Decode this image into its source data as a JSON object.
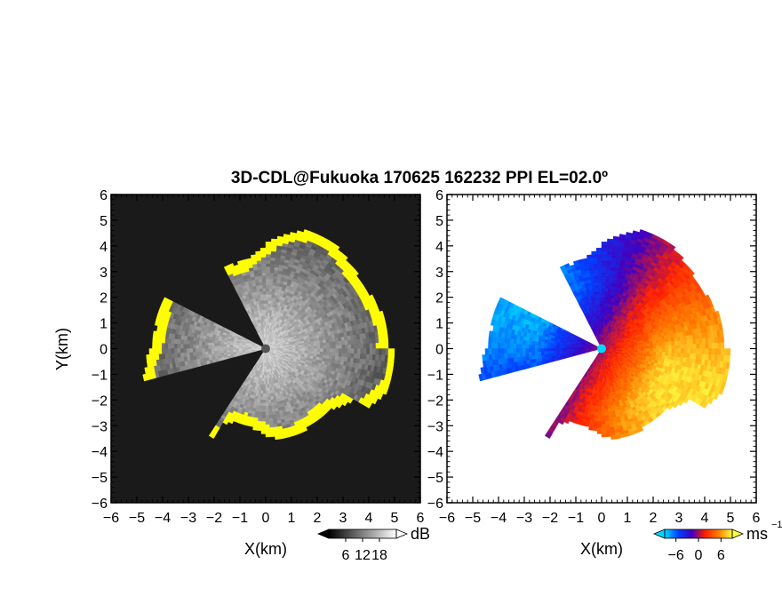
{
  "figure": {
    "title": "3D-CDL@Fukuoka 170625 162232 PPI EL=02.0º"
  },
  "chart_data": [
    {
      "type": "heatmap",
      "name": "snr-ppi",
      "xlabel": "X(km)",
      "ylabel": "Y(km)",
      "xlim": [
        -6,
        6
      ],
      "ylim": [
        -6,
        6
      ],
      "xticks": [
        "−6",
        "−5",
        "−4",
        "−3",
        "−2",
        "−1",
        "0",
        "1",
        "2",
        "3",
        "4",
        "5",
        "6"
      ],
      "yticks": [
        "−6",
        "−5",
        "−4",
        "−3",
        "−2",
        "−1",
        "0",
        "1",
        "2",
        "3",
        "4",
        "5",
        "6"
      ],
      "colorbar": {
        "unit": "dB",
        "ticks": [
          6,
          12,
          18
        ],
        "range": [
          0,
          24
        ],
        "colors": [
          "#000000",
          "#ffffff"
        ]
      },
      "highlight_color": "#ffff00",
      "blocked_sectors_deg": [
        [
          118,
          152
        ],
        [
          196,
          236
        ]
      ],
      "max_range_km": 4.2
    },
    {
      "type": "heatmap",
      "name": "radial-velocity-ppi",
      "xlabel": "X(km)",
      "ylabel": "",
      "xlim": [
        -6,
        6
      ],
      "ylim": [
        -6,
        6
      ],
      "xticks": [
        "−6",
        "−5",
        "−4",
        "−3",
        "−2",
        "−1",
        "0",
        "1",
        "2",
        "3",
        "4",
        "5",
        "6"
      ],
      "yticks": [
        "−6",
        "−5",
        "−4",
        "−3",
        "−2",
        "−1",
        "0",
        "1",
        "2",
        "3",
        "4",
        "5",
        "6"
      ],
      "colorbar": {
        "unit": "ms",
        "unit_sup": "−1",
        "ticks": [
          -6,
          0,
          6
        ],
        "range": [
          -9,
          9
        ],
        "colors": [
          "#00d8ff",
          "#0040ff",
          "#4000c0",
          "#ff2000",
          "#ff8000",
          "#ffff40"
        ]
      },
      "blocked_sectors_deg": [
        [
          118,
          152
        ],
        [
          196,
          236
        ]
      ],
      "max_range_km": 4.2
    }
  ]
}
